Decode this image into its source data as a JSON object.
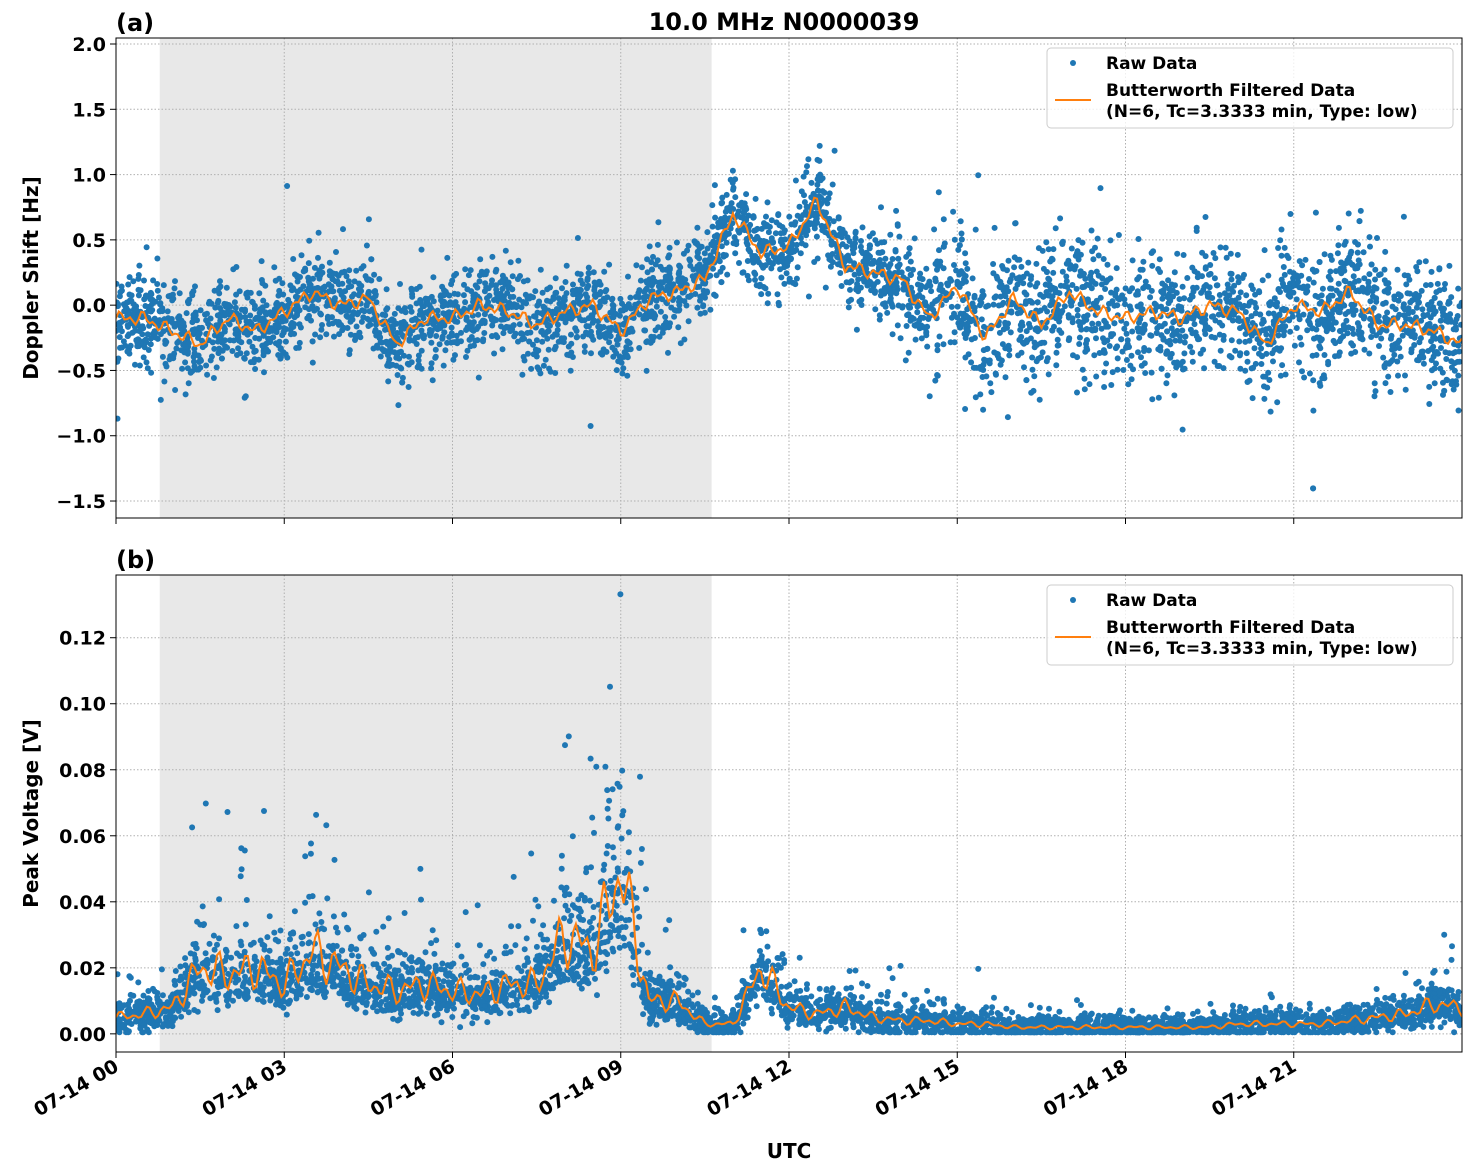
{
  "title": "10.0 MHz N0000039",
  "xlabel": "UTC",
  "x_tick_labels": [
    "07-14 00",
    "07-14 03",
    "07-14 06",
    "07-14 09",
    "07-14 12",
    "07-14 15",
    "07-14 18",
    "07-14 21"
  ],
  "colors": {
    "raw": "#1f77b4",
    "filtered": "#ff7f0e",
    "shade": "#e8e8e8"
  },
  "chart_data": [
    {
      "type": "scatter",
      "panel_label": "(a)",
      "ylabel": "Doppler Shift [Hz]",
      "x_unit": "hours UTC on 07-14",
      "xlim": [
        0,
        24
      ],
      "ylim": [
        -1.63,
        2.046
      ],
      "y_ticks": [
        -1.5,
        -1.0,
        -0.5,
        0.0,
        0.5,
        1.0,
        1.5,
        2.0
      ],
      "y_tick_labels": [
        "−1.5",
        "−1.0",
        "−0.5",
        "0.0",
        "0.5",
        "1.0",
        "1.5",
        "2.0"
      ],
      "grid": true,
      "shaded_interval_hours": [
        0.78,
        10.62
      ],
      "legend": {
        "position": "top-right",
        "entries": [
          "Raw Data",
          "Butterworth Filtered Data",
          "(N=6, Tc=3.3333 min, Type: low)"
        ]
      },
      "filtered_x": [
        0,
        0.5,
        1,
        1.5,
        2,
        2.5,
        3,
        3.5,
        4,
        4.5,
        5,
        5.5,
        6,
        6.5,
        7,
        7.5,
        8,
        8.5,
        9,
        9.5,
        10,
        10.5,
        11,
        11.5,
        12,
        12.5,
        13,
        13.5,
        14,
        14.5,
        15,
        15.5,
        16,
        16.5,
        17,
        17.5,
        18,
        18.5,
        19,
        19.5,
        20,
        20.5,
        21,
        21.5,
        22,
        22.5,
        23,
        23.5,
        24
      ],
      "filtered_y": [
        -0.1,
        -0.1,
        -0.2,
        -0.3,
        -0.1,
        -0.2,
        -0.05,
        0.1,
        0.0,
        0.05,
        -0.3,
        -0.1,
        -0.1,
        0.0,
        -0.05,
        -0.15,
        -0.05,
        0.0,
        -0.2,
        0.05,
        0.1,
        0.2,
        0.7,
        0.4,
        0.45,
        0.8,
        0.3,
        0.25,
        0.2,
        -0.1,
        0.15,
        -0.25,
        0.05,
        -0.15,
        0.1,
        -0.05,
        -0.1,
        -0.05,
        -0.1,
        0.0,
        -0.05,
        -0.3,
        0.0,
        -0.05,
        0.1,
        -0.15,
        -0.15,
        -0.2,
        -0.3
      ]
    },
    {
      "type": "scatter",
      "panel_label": "(b)",
      "ylabel": "Peak Voltage [V]",
      "x_unit": "hours UTC on 07-14",
      "xlim": [
        0,
        24
      ],
      "ylim": [
        -0.0055,
        0.139
      ],
      "y_ticks": [
        0.0,
        0.02,
        0.04,
        0.06,
        0.08,
        0.1,
        0.12
      ],
      "y_tick_labels": [
        "0.00",
        "0.02",
        "0.04",
        "0.06",
        "0.08",
        "0.10",
        "0.12"
      ],
      "grid": true,
      "shaded_interval_hours": [
        0.78,
        10.62
      ],
      "legend": {
        "position": "top-right",
        "entries": [
          "Raw Data",
          "Butterworth Filtered Data",
          "(N=6, Tc=3.3333 min, Type: low)"
        ]
      },
      "filtered_x": [
        0,
        0.5,
        1,
        1.5,
        2,
        2.5,
        3,
        3.5,
        4,
        4.5,
        5,
        5.5,
        6,
        6.5,
        7,
        7.5,
        8,
        8.5,
        9,
        9.5,
        10,
        10.5,
        11,
        11.5,
        12,
        12.5,
        13,
        13.5,
        14,
        14.5,
        15,
        15.5,
        16,
        16.5,
        17,
        17.5,
        18,
        18.5,
        19,
        19.5,
        20,
        20.5,
        21,
        21.5,
        22,
        22.5,
        23,
        23.5,
        24
      ],
      "filtered_y": [
        0.005,
        0.006,
        0.008,
        0.02,
        0.018,
        0.02,
        0.015,
        0.025,
        0.02,
        0.015,
        0.013,
        0.015,
        0.013,
        0.012,
        0.015,
        0.015,
        0.03,
        0.025,
        0.05,
        0.01,
        0.01,
        0.003,
        0.003,
        0.02,
        0.008,
        0.006,
        0.008,
        0.005,
        0.004,
        0.004,
        0.003,
        0.003,
        0.002,
        0.002,
        0.002,
        0.002,
        0.002,
        0.002,
        0.002,
        0.002,
        0.003,
        0.003,
        0.003,
        0.003,
        0.004,
        0.005,
        0.006,
        0.009,
        0.008
      ]
    }
  ]
}
